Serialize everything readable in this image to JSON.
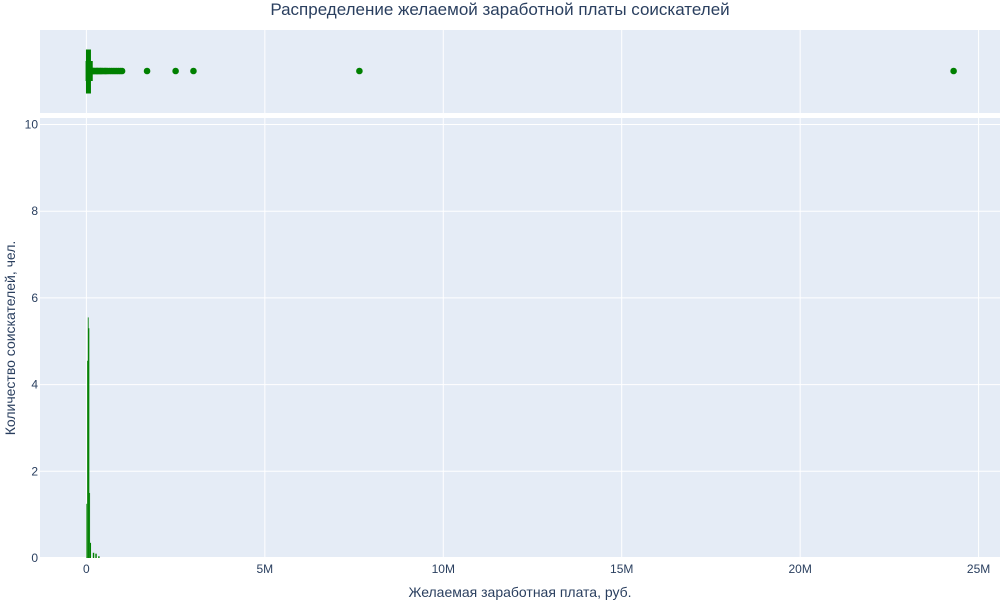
{
  "chart_data": {
    "type": "histogram",
    "title": "Распределение желаемой заработной платы соискателей",
    "xlabel": "Желаемая заработная плата, руб.",
    "ylabel": "Количество соискателей, чел.",
    "xlim": [
      -1300000,
      25600000
    ],
    "ylim": [
      0,
      10.15
    ],
    "x_ticks": [
      {
        "value": 0,
        "label": "0"
      },
      {
        "value": 5000000,
        "label": "5M"
      },
      {
        "value": 10000000,
        "label": "10M"
      },
      {
        "value": 15000000,
        "label": "15M"
      },
      {
        "value": 20000000,
        "label": "20M"
      },
      {
        "value": 25000000,
        "label": "25M"
      }
    ],
    "y_ticks": [
      0,
      2,
      4,
      6,
      8,
      10
    ],
    "color": "#008000",
    "grid": true,
    "background": "#e5ecf6",
    "bins": [
      {
        "x0": 0,
        "x1": 20000,
        "count": 1.25
      },
      {
        "x0": 20000,
        "x1": 40000,
        "count": 4.55
      },
      {
        "x0": 40000,
        "x1": 60000,
        "count": 5.55
      },
      {
        "x0": 60000,
        "x1": 80000,
        "count": 5.3
      },
      {
        "x0": 80000,
        "x1": 100000,
        "count": 1.5
      },
      {
        "x0": 100000,
        "x1": 130000,
        "count": 0.35
      },
      {
        "x0": 180000,
        "x1": 220000,
        "count": 0.12
      },
      {
        "x0": 250000,
        "x1": 290000,
        "count": 0.1
      },
      {
        "x0": 330000,
        "x1": 370000,
        "count": 0.04
      }
    ],
    "box": {
      "q1": 30000,
      "median": 50000,
      "q3": 80000,
      "lower_fence": 5000,
      "upper_fence": 150000
    },
    "outliers": [
      160000,
      180000,
      200000,
      220000,
      250000,
      280000,
      300000,
      320000,
      350000,
      380000,
      400000,
      430000,
      460000,
      500000,
      530000,
      560000,
      600000,
      650000,
      700000,
      750000,
      800000,
      850000,
      900000,
      950000,
      1000000,
      1700000,
      2500000,
      3000000,
      7650000,
      24300000
    ]
  }
}
